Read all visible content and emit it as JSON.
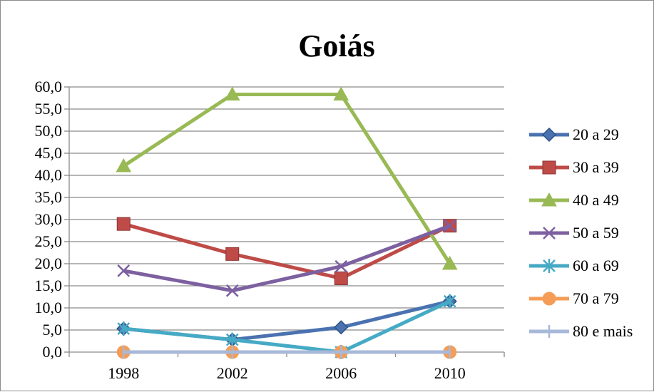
{
  "chart_data": {
    "type": "line",
    "title": "Goiás",
    "categories": [
      "1998",
      "2002",
      "2006",
      "2010"
    ],
    "yticks": [
      "0,0",
      "5,0",
      "10,0",
      "15,0",
      "20,0",
      "25,0",
      "30,0",
      "35,0",
      "40,0",
      "45,0",
      "50,0",
      "55,0",
      "60,0"
    ],
    "ylim": [
      0,
      60
    ],
    "grid": true,
    "legend_position": "right",
    "series": [
      {
        "name": "20 a 29",
        "values": [
          5.3,
          2.8,
          5.6,
          11.5
        ],
        "color": "#4a72b0",
        "marker": "diamond"
      },
      {
        "name": "30 a 39",
        "values": [
          29.0,
          22.2,
          16.7,
          28.6
        ],
        "color": "#be4b48",
        "marker": "square"
      },
      {
        "name": "40 a 49",
        "values": [
          42.1,
          58.3,
          58.3,
          20.0
        ],
        "color": "#98b954",
        "marker": "triangle"
      },
      {
        "name": "50 a 59",
        "values": [
          18.4,
          13.9,
          19.4,
          28.6
        ],
        "color": "#7d60a0",
        "marker": "x"
      },
      {
        "name": "60 a 69",
        "values": [
          5.3,
          2.8,
          0.0,
          11.5
        ],
        "color": "#46aac5",
        "marker": "star"
      },
      {
        "name": "70 a 79",
        "values": [
          0.0,
          0.0,
          0.0,
          0.0
        ],
        "color": "#f59d56",
        "marker": "circle"
      },
      {
        "name": "80 e mais",
        "values": [
          0.0,
          0.0,
          0.0,
          0.0
        ],
        "color": "#a8b8d8",
        "marker": "plus"
      }
    ]
  }
}
